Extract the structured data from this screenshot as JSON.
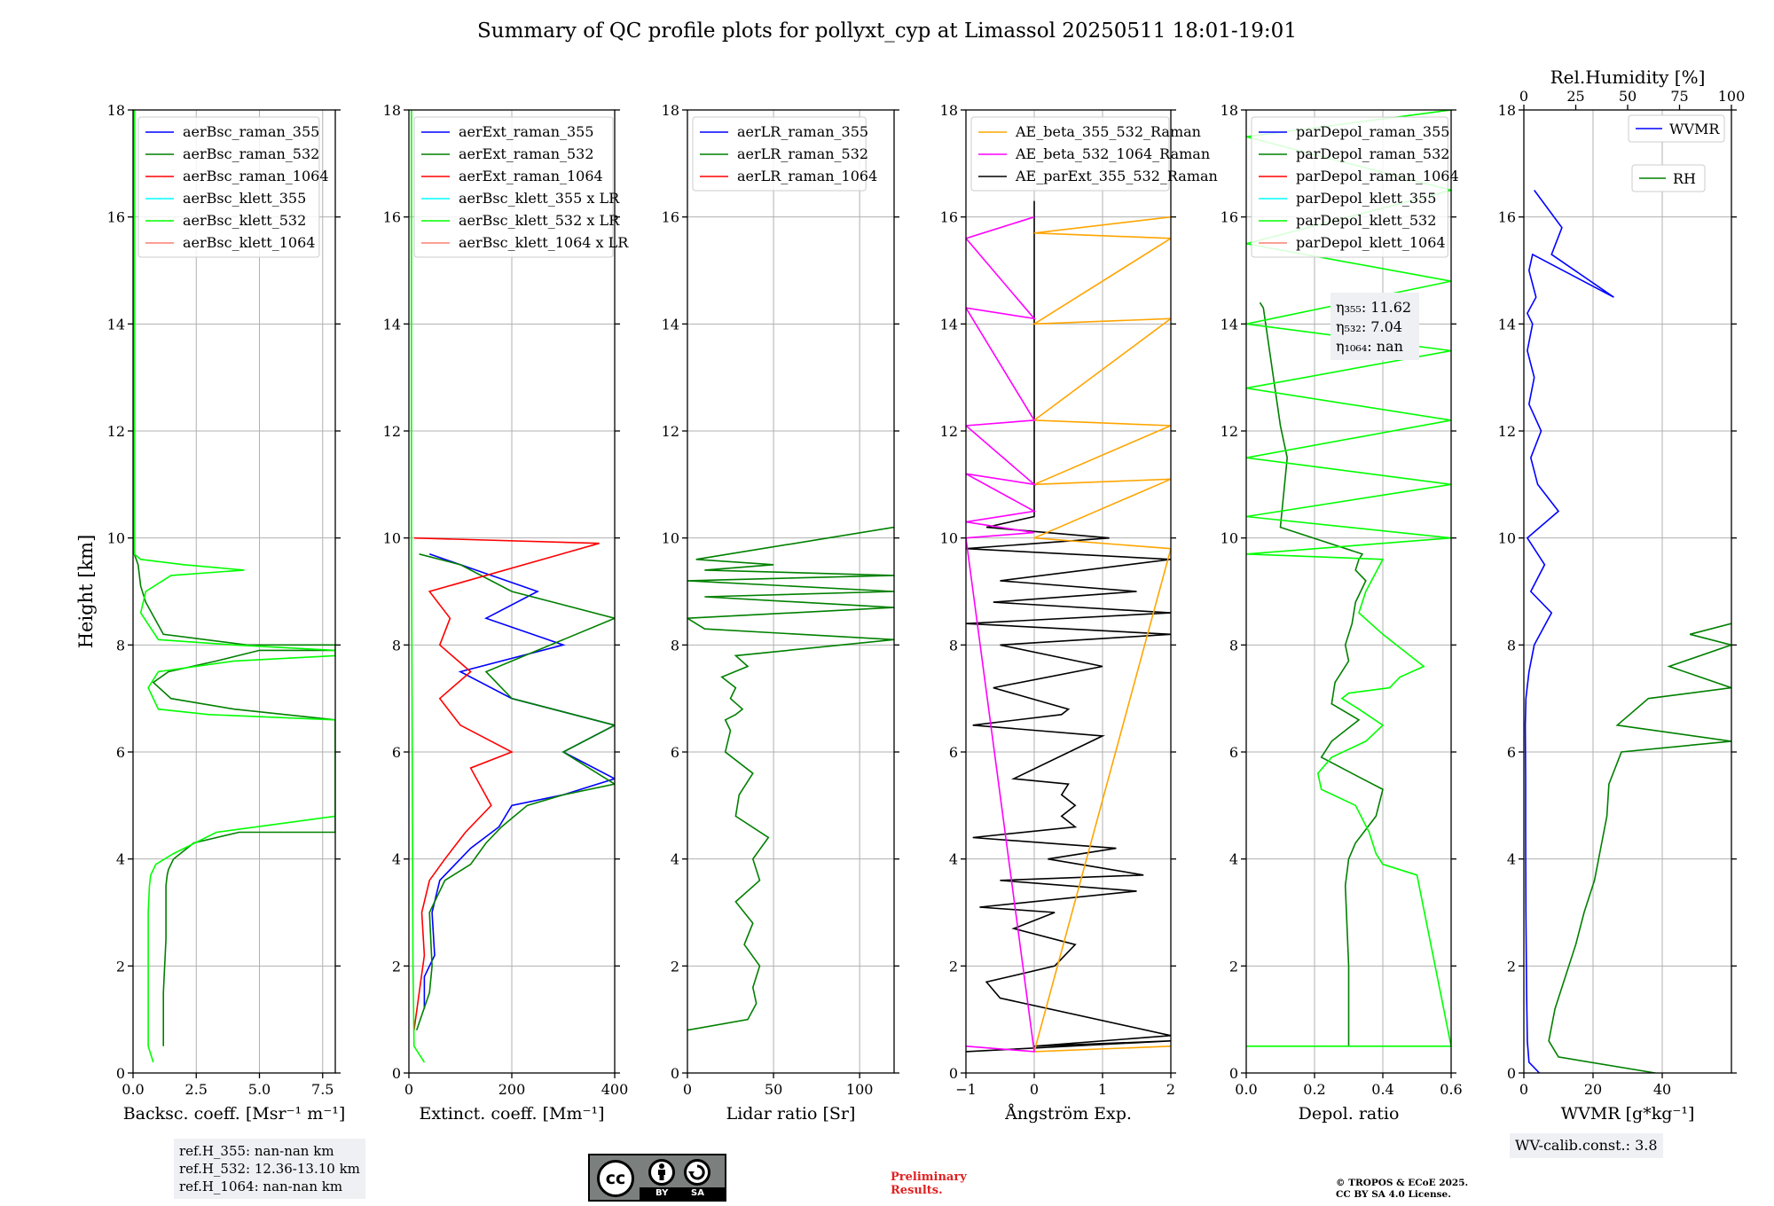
{
  "title": "Summary of QC profile plots for pollyxt_cyp at Limassol 20250511 18:01-19:01",
  "ylabel": "Height [km]",
  "yticks": [
    0,
    2,
    4,
    6,
    8,
    10,
    12,
    14,
    16,
    18
  ],
  "ref_heights": [
    "ref.H_355: nan-nan km",
    "ref.H_532: 12.36-13.10 km",
    "ref.H_1064: nan-nan km"
  ],
  "wv_calib": "WV-calib.const.: 3.8",
  "license_badge": {
    "cc": "cc",
    "by": "BY",
    "sa": "SA",
    "by_icon": "person-icon",
    "sa_icon": "share-alike-icon"
  },
  "preliminary": "Preliminary\nResults.",
  "copyright": "© TROPOS & ECoE 2025.\nCC BY SA 4.0 License.",
  "colors": {
    "blue": "#0000ff",
    "green": "#008000",
    "red": "#ff0000",
    "cyan": "#00ffff",
    "lime": "#00ff00",
    "salmon": "#fa8072",
    "orange": "#ffa500",
    "magenta": "#ff00ff",
    "black": "#000000"
  },
  "chart_data": [
    {
      "type": "line",
      "xlabel": "Backsc. coeff. [Msr⁻¹ m⁻¹]",
      "ylabel": "Height [km]",
      "xlim": [
        0,
        8
      ],
      "ylim": [
        0,
        18
      ],
      "xticks": [
        "0.0",
        "2.5",
        "5.0",
        "7.5"
      ],
      "xtick_values": [
        0,
        2.5,
        5,
        7.5
      ],
      "legend": [
        "aerBsc_raman_355",
        "aerBsc_raman_532",
        "aerBsc_raman_1064",
        "aerBsc_klett_355",
        "aerBsc_klett_532",
        "aerBsc_klett_1064"
      ],
      "legend_colors": [
        "blue",
        "green",
        "red",
        "cyan",
        "lime",
        "salmon"
      ],
      "series": [
        {
          "name": "aerBsc_raman_532",
          "color": "green",
          "x": [
            1.2,
            1.2,
            1.3,
            1.3,
            1.35,
            1.4,
            1.6,
            2.4,
            4.2,
            8.0,
            8.0,
            4.0,
            1.5,
            0.8,
            1.4,
            3.3,
            5.0,
            8.0,
            8.0,
            4.5,
            1.2,
            0.5,
            0.3,
            0.2,
            0.05,
            0.05,
            0.05
          ],
          "y": [
            0.5,
            1.5,
            2.5,
            3.5,
            3.7,
            3.8,
            4.0,
            4.3,
            4.5,
            4.5,
            6.6,
            6.8,
            7.0,
            7.3,
            7.5,
            7.7,
            7.9,
            7.9,
            8.0,
            8.0,
            8.2,
            8.8,
            9.1,
            9.5,
            9.7,
            12,
            18
          ]
        },
        {
          "name": "aerBsc_klett_532",
          "color": "lime",
          "x": [
            0.8,
            0.6,
            0.6,
            0.6,
            0.65,
            0.7,
            0.9,
            1.6,
            3.3,
            8.0,
            8.0,
            3.0,
            1.0,
            0.6,
            1.0,
            4.0,
            8.0,
            8.0,
            4.0,
            1.0,
            0.3,
            0.5,
            1.5,
            4.4,
            2.0,
            0.3,
            0.05,
            0.05,
            0.05
          ],
          "y": [
            0.2,
            0.5,
            1.5,
            3.0,
            3.5,
            3.7,
            3.9,
            4.1,
            4.5,
            4.8,
            6.6,
            6.7,
            6.8,
            7.2,
            7.5,
            7.7,
            7.8,
            7.9,
            8.0,
            8.1,
            8.6,
            9.0,
            9.3,
            9.4,
            9.5,
            9.6,
            9.7,
            12,
            18
          ]
        }
      ]
    },
    {
      "type": "line",
      "xlabel": "Extinct. coeff. [Mm⁻¹]",
      "xlim": [
        0,
        400
      ],
      "ylim": [
        0,
        18
      ],
      "xticks": [
        "0",
        "200",
        "400"
      ],
      "xtick_values": [
        0,
        200,
        400
      ],
      "legend": [
        "aerExt_raman_355",
        "aerExt_raman_532",
        "aerExt_raman_1064",
        "aerBsc_klett_355 x LR",
        "aerBsc_klett_532 x LR",
        "aerBsc_klett_1064 x LR"
      ],
      "legend_colors": [
        "blue",
        "green",
        "red",
        "cyan",
        "lime",
        "salmon"
      ],
      "series": [
        {
          "name": "aerExt_raman_355",
          "color": "blue",
          "x": [
            30,
            30,
            50,
            45,
            60,
            90,
            120,
            175,
            200,
            300,
            400,
            300,
            400,
            200,
            100,
            300,
            150,
            250,
            100,
            40
          ],
          "y": [
            1.2,
            1.8,
            2.2,
            3.0,
            3.6,
            3.9,
            4.2,
            4.6,
            5.0,
            5.2,
            5.5,
            6.0,
            6.5,
            7.0,
            7.5,
            8.0,
            8.5,
            9.0,
            9.5,
            9.7
          ]
        },
        {
          "name": "aerExt_raman_532",
          "color": "green",
          "x": [
            15,
            40,
            45,
            40,
            70,
            120,
            150,
            180,
            230,
            300,
            400,
            300,
            400,
            200,
            150,
            400,
            200,
            100,
            20
          ],
          "y": [
            0.8,
            1.5,
            2.0,
            3.0,
            3.6,
            3.9,
            4.3,
            4.6,
            5.0,
            5.2,
            5.4,
            6.0,
            6.5,
            7.0,
            7.5,
            8.5,
            9.0,
            9.5,
            9.7
          ]
        },
        {
          "name": "aerExt_raman_1064",
          "color": "red",
          "x": [
            10,
            20,
            30,
            25,
            40,
            70,
            110,
            160,
            120,
            200,
            100,
            60,
            120,
            60,
            80,
            40,
            370,
            10
          ],
          "y": [
            0.8,
            1.5,
            2.2,
            3.0,
            3.6,
            4.0,
            4.5,
            5.0,
            5.7,
            6.0,
            6.5,
            7.0,
            7.5,
            8.0,
            8.5,
            9.0,
            9.9,
            10.0
          ]
        },
        {
          "name": "aerBsc_klett_532 x LR",
          "color": "lime",
          "x": [
            30,
            10,
            8,
            5,
            5
          ],
          "y": [
            0.2,
            0.5,
            2.0,
            10,
            18
          ]
        }
      ]
    },
    {
      "type": "line",
      "xlabel": "Lidar ratio [Sr]",
      "xlim": [
        0,
        120
      ],
      "ylim": [
        0,
        18
      ],
      "xticks": [
        "0",
        "50",
        "100"
      ],
      "xtick_values": [
        0,
        50,
        100
      ],
      "legend": [
        "aerLR_raman_355",
        "aerLR_raman_532",
        "aerLR_raman_1064"
      ],
      "legend_colors": [
        "blue",
        "green",
        "red"
      ],
      "series": [
        {
          "name": "aerLR_raman_532",
          "color": "green",
          "x": [
            0,
            35,
            40,
            38,
            42,
            33,
            38,
            28,
            42,
            38,
            47,
            28,
            30,
            38,
            22,
            25,
            22,
            28,
            32,
            25,
            28,
            20,
            35,
            28,
            120,
            10,
            0,
            120,
            10,
            120,
            0,
            120,
            10,
            50,
            5,
            120
          ],
          "y": [
            0.8,
            1.0,
            1.3,
            1.6,
            2.0,
            2.4,
            2.8,
            3.2,
            3.6,
            4.0,
            4.4,
            4.8,
            5.2,
            5.6,
            6.0,
            6.4,
            6.6,
            6.7,
            6.8,
            7.0,
            7.2,
            7.4,
            7.6,
            7.8,
            8.1,
            8.3,
            8.5,
            8.7,
            8.9,
            9.0,
            9.2,
            9.3,
            9.4,
            9.5,
            9.6,
            10.2
          ]
        }
      ]
    },
    {
      "type": "line",
      "xlabel": "Ångström Exp.",
      "xlim": [
        -1,
        2
      ],
      "ylim": [
        0,
        18
      ],
      "xticks": [
        "−1",
        "0",
        "1",
        "2"
      ],
      "xtick_values": [
        -1,
        0,
        1,
        2
      ],
      "legend": [
        "AE_beta_355_532_Raman",
        "AE_beta_532_1064_Raman",
        "AE_parExt_355_532_Raman"
      ],
      "legend_colors": [
        "orange",
        "magenta",
        "black"
      ],
      "series": [
        {
          "name": "AE_parExt_355_532_Raman",
          "color": "black",
          "x": [
            -1,
            2,
            0,
            2,
            -0.5,
            -0.7,
            0.3,
            0.6,
            -0.3,
            0.3,
            -0.8,
            1.5,
            -0.5,
            1.6,
            0.2,
            1.2,
            -0.9,
            0.6,
            0.4,
            0.6,
            0.4,
            0.5,
            -0.3,
            1.0,
            -0.9,
            0.4,
            0.5,
            -0.6,
            1.0,
            -0.5,
            2.0,
            -1.0,
            2.0,
            -0.6,
            1.5,
            -0.5,
            2.0,
            -1.0,
            1.1,
            -0.7,
            0,
            0
          ],
          "y": [
            0.4,
            0.6,
            0.5,
            0.7,
            1.4,
            1.7,
            2.0,
            2.4,
            2.7,
            3.0,
            3.1,
            3.4,
            3.6,
            3.7,
            4.0,
            4.2,
            4.4,
            4.6,
            4.8,
            5.0,
            5.2,
            5.4,
            5.5,
            6.3,
            6.5,
            6.7,
            6.8,
            7.2,
            7.6,
            8.0,
            8.2,
            8.4,
            8.6,
            8.8,
            9.0,
            9.2,
            9.6,
            9.8,
            10.0,
            10.2,
            10.4,
            16.3
          ]
        },
        {
          "name": "AE_beta_355_532_Raman",
          "color": "orange",
          "x": [
            2,
            0,
            2,
            0,
            2,
            0,
            2,
            0,
            2,
            0,
            2,
            0,
            2
          ],
          "y": [
            0.5,
            0.4,
            9.8,
            10.0,
            11.1,
            11.0,
            12.1,
            12.2,
            14.1,
            14.0,
            15.6,
            15.7,
            16.0
          ]
        },
        {
          "name": "AE_beta_532_1064_Raman",
          "color": "magenta",
          "x": [
            -1,
            0,
            -1,
            0,
            -1,
            0,
            -1,
            0,
            -1,
            0,
            -1,
            0,
            -1,
            0
          ],
          "y": [
            0.5,
            0.4,
            10.0,
            10.1,
            10.3,
            10.5,
            11.2,
            11.0,
            12.1,
            12.2,
            14.3,
            14.1,
            15.6,
            16.0
          ]
        }
      ]
    },
    {
      "type": "line",
      "xlabel": "Depol. ratio",
      "xlim": [
        0,
        0.6
      ],
      "ylim": [
        0,
        18
      ],
      "xticks": [
        "0.0",
        "0.2",
        "0.4",
        "0.6"
      ],
      "xtick_values": [
        0,
        0.2,
        0.4,
        0.6
      ],
      "legend": [
        "parDepol_raman_355",
        "parDepol_raman_532",
        "parDepol_raman_1064",
        "parDepol_klett_355",
        "parDepol_klett_532",
        "parDepol_klett_1064"
      ],
      "legend_colors": [
        "blue",
        "green",
        "red",
        "cyan",
        "lime",
        "salmon"
      ],
      "annotation": [
        "η₃₅₅: 11.62",
        "η₅₃₂: 7.04",
        "η₁₀₆₄: nan"
      ],
      "series": [
        {
          "name": "parDepol_raman_532",
          "color": "green",
          "x": [
            0.3,
            0.3,
            0.29,
            0.3,
            0.32,
            0.38,
            0.4,
            0.34,
            0.22,
            0.25,
            0.33,
            0.25,
            0.26,
            0.3,
            0.29,
            0.31,
            0.32,
            0.35,
            0.32,
            0.33,
            0.34,
            0.1,
            0.12,
            0.1,
            0.05,
            0.04
          ],
          "y": [
            0.5,
            2.0,
            3.5,
            4.0,
            4.3,
            4.8,
            5.3,
            5.5,
            5.9,
            6.2,
            6.6,
            6.9,
            7.3,
            7.7,
            8.0,
            8.4,
            8.8,
            9.2,
            9.4,
            9.6,
            9.7,
            10.2,
            11.5,
            12.1,
            14.3,
            14.4
          ]
        },
        {
          "name": "parDepol_klett_532",
          "color": "lime",
          "x": [
            0.6,
            0.0,
            0.6,
            0.5,
            0.4,
            0.38,
            0.36,
            0.32,
            0.22,
            0.21,
            0.25,
            0.35,
            0.4,
            0.33,
            0.28,
            0.3,
            0.42,
            0.45,
            0.52,
            0.4,
            0.33,
            0.35,
            0.4,
            0.0,
            0.6,
            0.0,
            0.6,
            0.0,
            0.6,
            0.0,
            0.6,
            0.0,
            0.6,
            0.0,
            0.6,
            0.0,
            0.6
          ],
          "y": [
            0.5,
            0.5,
            0.5,
            3.7,
            3.9,
            4.1,
            4.5,
            5.0,
            5.3,
            5.6,
            5.9,
            6.2,
            6.5,
            6.8,
            7.0,
            7.1,
            7.2,
            7.4,
            7.6,
            8.2,
            8.6,
            9.0,
            9.6,
            9.7,
            10.0,
            10.4,
            11.0,
            11.5,
            12.2,
            12.8,
            13.5,
            14.0,
            14.8,
            15.5,
            16.5,
            17.5,
            18.0
          ]
        }
      ]
    },
    {
      "type": "line",
      "xlabel": "WVMR [g*kg⁻¹]",
      "xlim": [
        0,
        60
      ],
      "ylim": [
        0,
        18
      ],
      "xticks": [
        "0",
        "20",
        "40"
      ],
      "xtick_values": [
        0,
        20,
        40
      ],
      "top_axis": {
        "label": "Rel.Humidity [%]",
        "xlim": [
          0,
          100
        ],
        "ticks": [
          "0",
          "25",
          "50",
          "75",
          "100"
        ],
        "tick_values": [
          0,
          25,
          50,
          75,
          100
        ]
      },
      "legend": [
        "WVMR",
        "RH"
      ],
      "legend_colors": [
        "blue",
        "green"
      ],
      "series": [
        {
          "name": "WVMR",
          "color": "blue",
          "x": [
            4.5,
            1.5,
            1.0,
            0.8,
            0.6,
            0.5,
            0.5,
            0.4,
            0.6,
            1.5,
            3.0,
            8.0,
            2.0,
            6.0,
            1.0,
            10.0,
            4.0,
            2.0,
            5.0,
            1.5,
            3.0,
            1.0,
            2.5,
            1.0,
            3.5,
            1.5,
            2.5,
            26.0,
            8.0,
            11.0,
            3.0
          ],
          "y": [
            0.0,
            0.2,
            0.6,
            1.5,
            3.0,
            4.5,
            5.5,
            6.5,
            7.0,
            7.5,
            8.0,
            8.6,
            9.0,
            9.5,
            10.0,
            10.5,
            11.0,
            11.5,
            12.0,
            12.5,
            13.0,
            13.5,
            14.0,
            14.2,
            14.5,
            15.0,
            15.3,
            14.5,
            15.3,
            15.8,
            16.5
          ]
        },
        {
          "name": "RH",
          "color": "green",
          "x": [
            38,
            10,
            7.2,
            9,
            12,
            15,
            17.4,
            20.4,
            22.2,
            24.0,
            24.6,
            27,
            28.2,
            60,
            27,
            36,
            60,
            42,
            60,
            48,
            60
          ],
          "y": [
            0.0,
            0.3,
            0.6,
            1.2,
            1.8,
            2.4,
            3.0,
            3.6,
            4.2,
            4.8,
            5.4,
            5.8,
            6.0,
            6.2,
            6.5,
            7.0,
            7.2,
            7.6,
            8.0,
            8.2,
            8.4
          ]
        }
      ]
    }
  ]
}
